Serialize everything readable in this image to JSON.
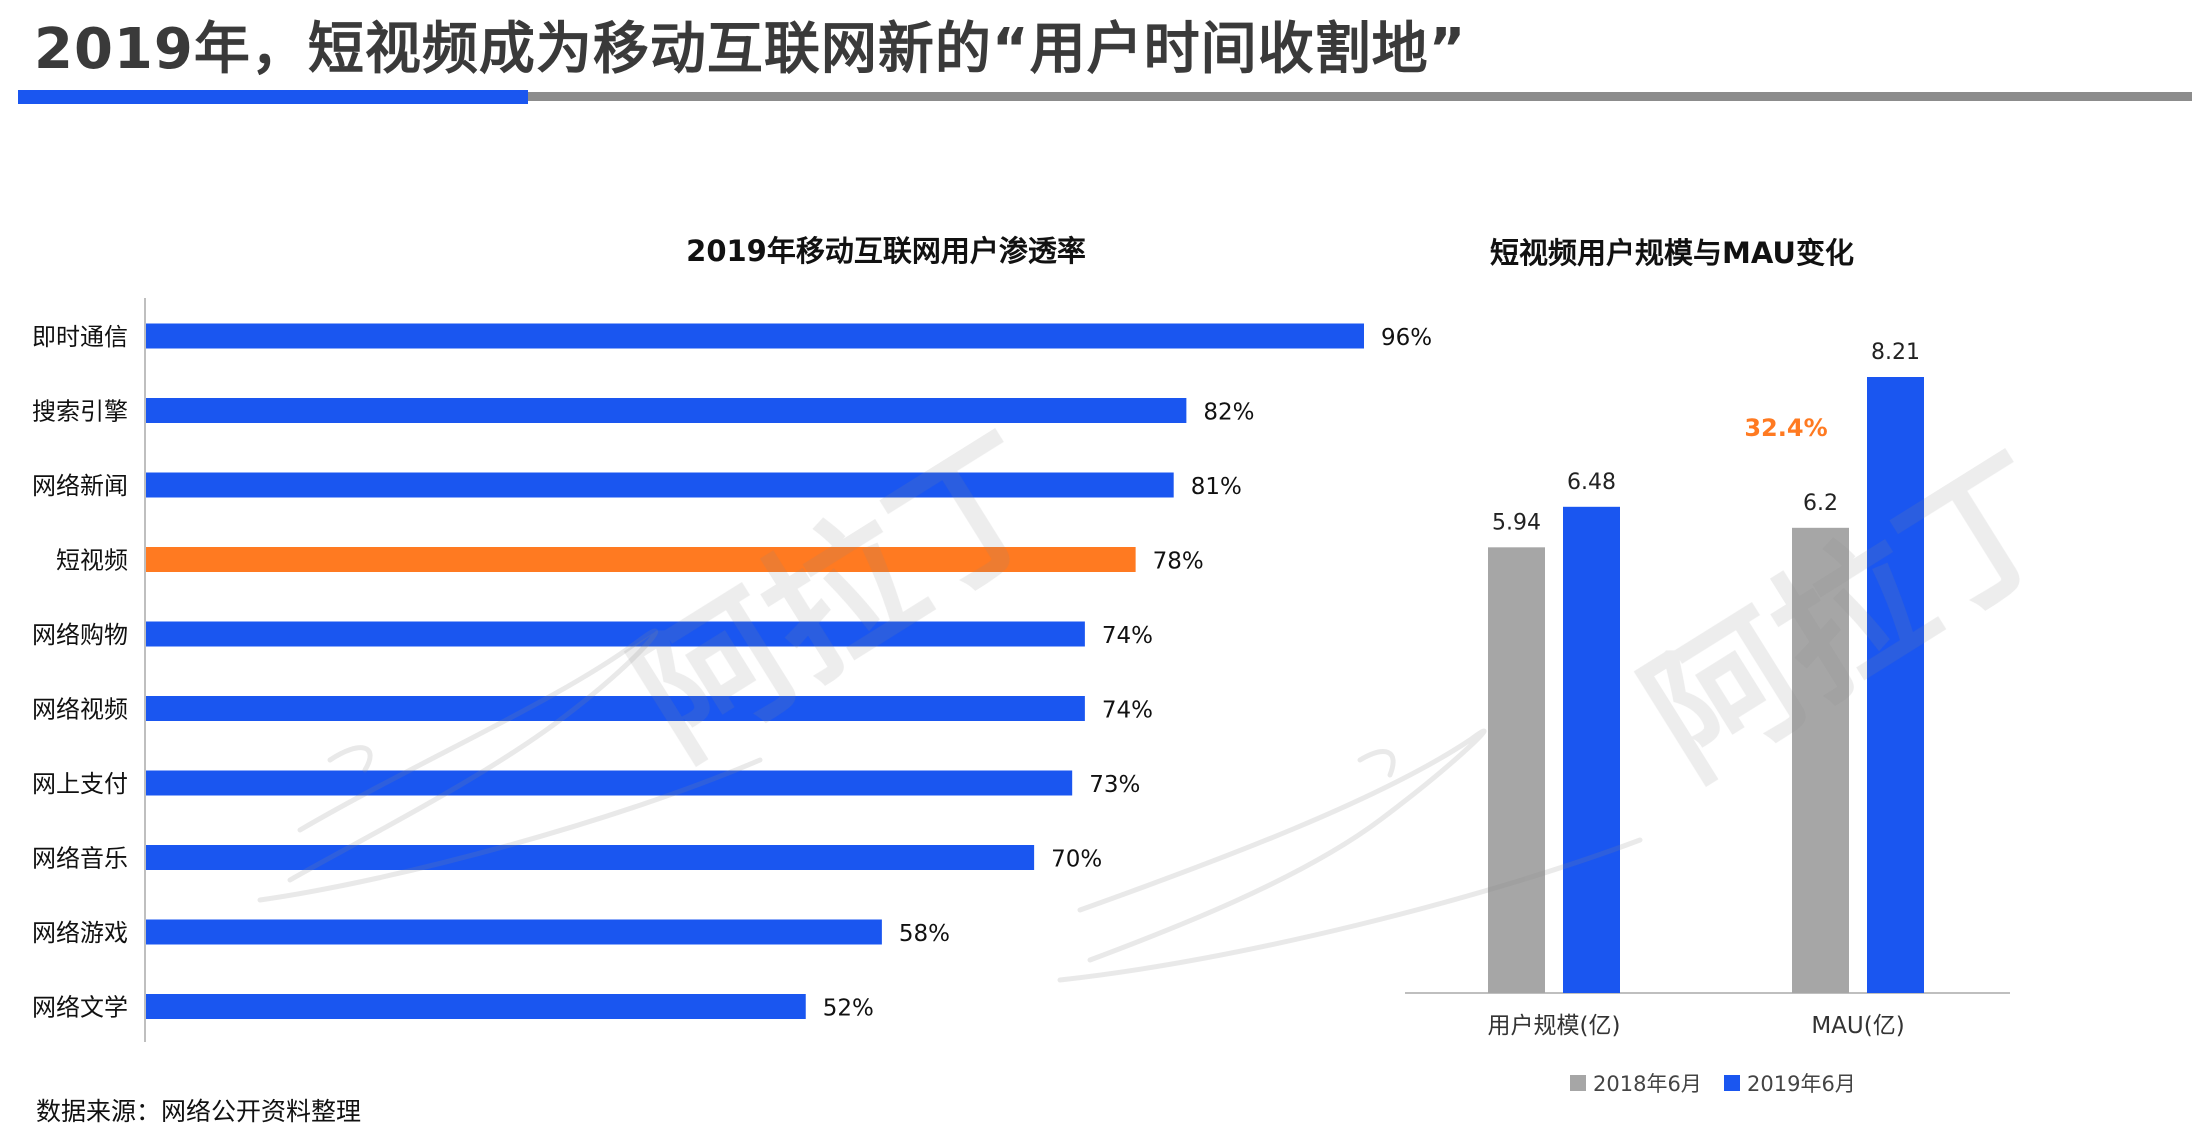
{
  "title": "2019年，短视频成为移动互联网新的“用户时间收割地”",
  "source": "数据来源：网络公开资料整理",
  "watermark_text": "阿拉丁",
  "colors": {
    "primary_blue": "#1a56f0",
    "highlight_orange": "#ff7a21",
    "gray_series": "#a6a6a6",
    "growth_label": "#ff7a21"
  },
  "chart_data": [
    {
      "type": "bar",
      "orientation": "horizontal",
      "title": "2019年移动互联网用户渗透率",
      "categories": [
        "即时通信",
        "搜索引擎",
        "网络新闻",
        "短视频",
        "网络购物",
        "网络视频",
        "网上支付",
        "网络音乐",
        "网络游戏",
        "网络文学"
      ],
      "values": [
        96,
        82,
        81,
        78,
        74,
        74,
        73,
        70,
        58,
        52
      ],
      "value_labels": [
        "96%",
        "82%",
        "81%",
        "78%",
        "74%",
        "74%",
        "73%",
        "70%",
        "58%",
        "52%"
      ],
      "highlight_category": "短视频",
      "xlim": [
        0,
        100
      ],
      "grid": false,
      "legend": false
    },
    {
      "type": "bar",
      "orientation": "vertical",
      "title": "短视频用户规模与MAU变化",
      "categories": [
        "用户规模(亿)",
        "MAU(亿)"
      ],
      "series": [
        {
          "name": "2018年6月",
          "values": [
            5.94,
            6.2
          ],
          "labels": [
            "5.94",
            "6.2"
          ]
        },
        {
          "name": "2019年6月",
          "values": [
            6.48,
            8.21
          ],
          "labels": [
            "6.48",
            "8.21"
          ]
        }
      ],
      "annotations": [
        {
          "category": "MAU(亿)",
          "text": "32.4%"
        }
      ],
      "ylim": [
        0,
        8.7
      ],
      "grid": false,
      "legend_position": "bottom"
    }
  ]
}
